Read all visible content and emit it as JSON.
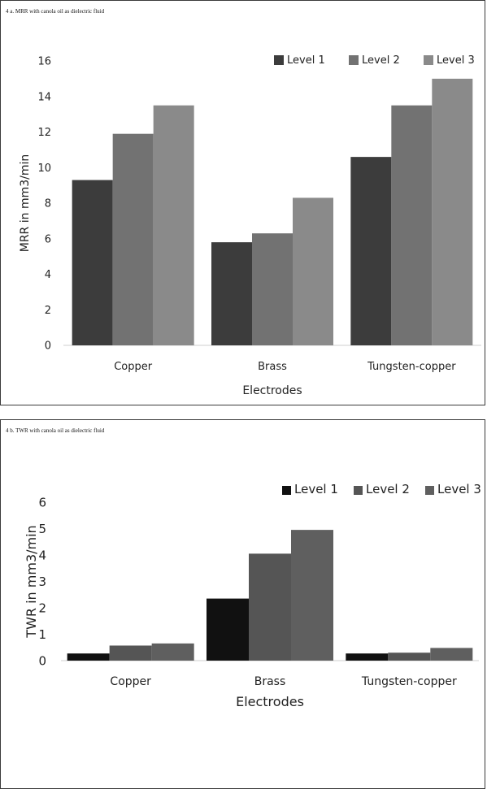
{
  "chart_data": [
    {
      "type": "bar",
      "title": "4 a. MRR with canola oil as dielectric fluid",
      "xlabel": "Electrodes",
      "ylabel": "MRR in mm3/min",
      "categories": [
        "Copper",
        "Brass",
        "Tungsten-copper"
      ],
      "ylim": [
        0,
        16
      ],
      "yticks": [
        "0",
        "2",
        "4",
        "6",
        "8",
        "10",
        "12",
        "14",
        "16"
      ],
      "series": [
        {
          "name": "Level 1",
          "values": [
            9.3,
            5.8,
            10.6
          ],
          "color": "#3c3c3c"
        },
        {
          "name": "Level 2",
          "values": [
            11.9,
            6.3,
            13.5
          ],
          "color": "#727272"
        },
        {
          "name": "Level 3",
          "values": [
            13.5,
            8.3,
            15.0
          ],
          "color": "#8a8a8a"
        }
      ],
      "legend": "top-right",
      "grid": false
    },
    {
      "type": "bar",
      "title": "4 b. TWR with canola oil as dielectric fluid",
      "xlabel": "Electrodes",
      "ylabel": "TWR in mm3/min",
      "categories": [
        "Copper",
        "Brass",
        "Tungsten-copper"
      ],
      "ylim": [
        0,
        6
      ],
      "yticks": [
        "0",
        "1",
        "2",
        "3",
        "4",
        "5",
        "6"
      ],
      "series": [
        {
          "name": "Level 1",
          "values": [
            0.27,
            2.35,
            0.27
          ],
          "color": "#111111"
        },
        {
          "name": "Level 2",
          "values": [
            0.57,
            4.05,
            0.3
          ],
          "color": "#555555"
        },
        {
          "name": "Level 3",
          "values": [
            0.65,
            4.95,
            0.48
          ],
          "color": "#5f5f5f"
        }
      ],
      "legend": "top-right",
      "grid": false
    }
  ]
}
